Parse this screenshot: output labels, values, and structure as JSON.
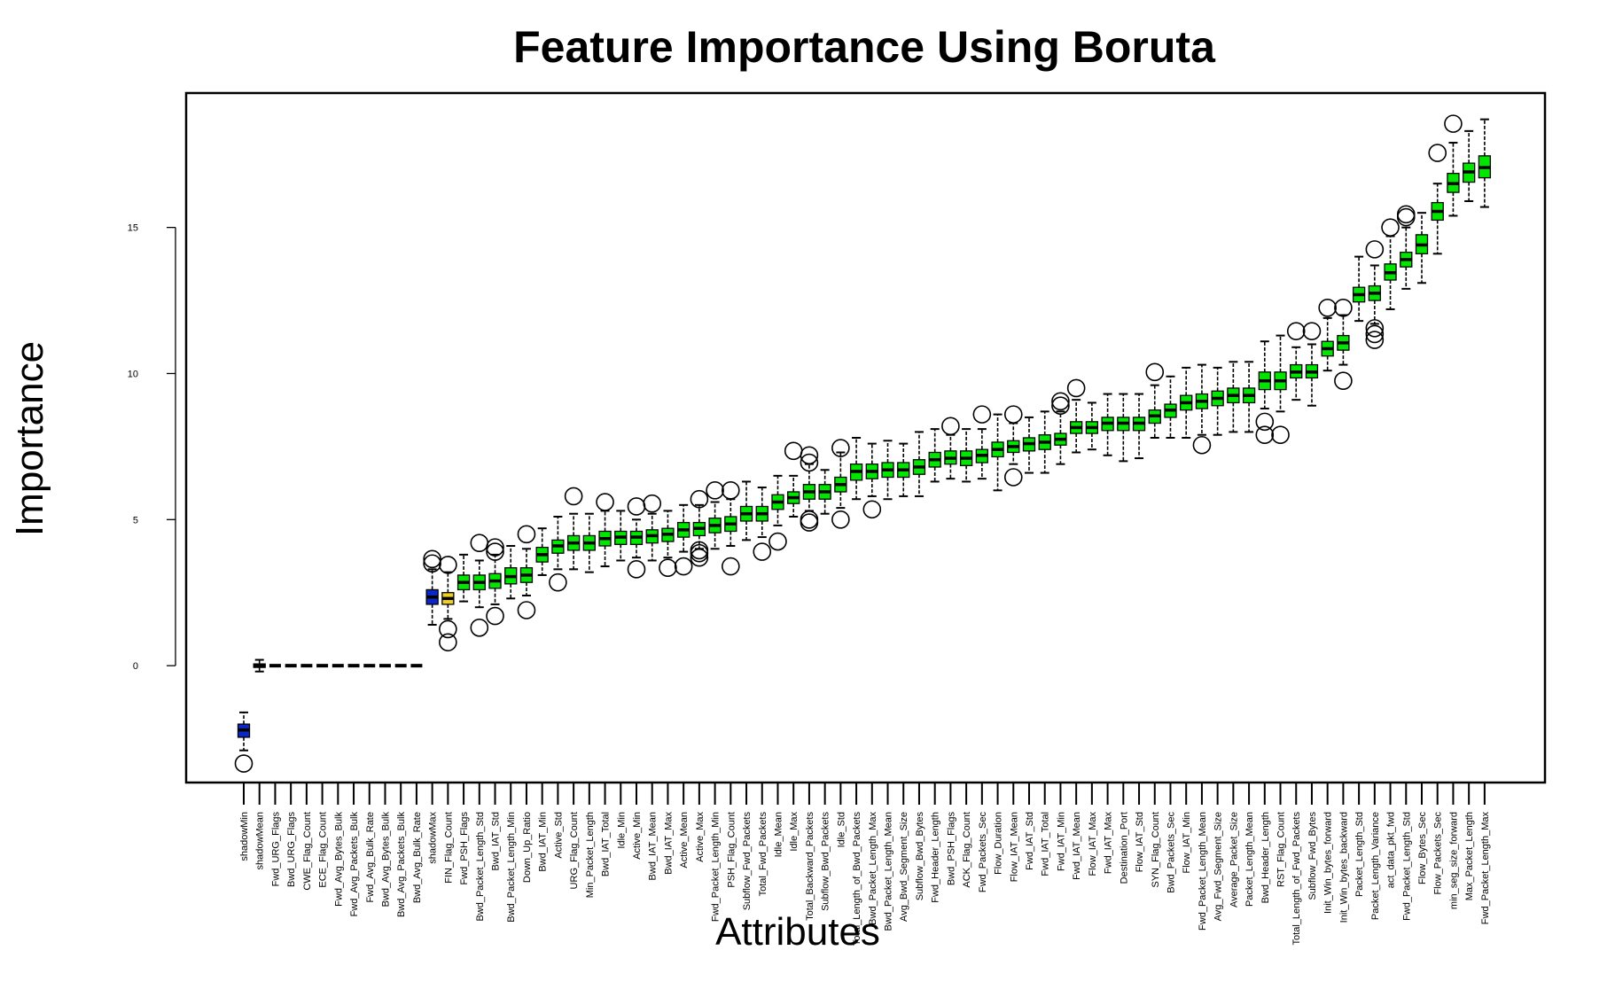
{
  "chart_data": {
    "type": "boxplot",
    "title": "Feature Importance Using Boruta",
    "xlabel": "Attributes",
    "ylabel": "Importance",
    "ylim": [
      -4.0,
      19.6
    ],
    "yticks": [
      0,
      5,
      10,
      15
    ],
    "ytick_labels": [
      "0",
      "5",
      "10",
      "15"
    ],
    "grid": false,
    "colors": {
      "shadow": "#0a28c8",
      "confirmed": "#00e600",
      "tentative": "#f0d020",
      "rejected": "#0a28c8",
      "outline": "#000000",
      "background": "#ffffff"
    },
    "attributes": [
      {
        "name": "shadowMin",
        "status": "shadow",
        "stats": [
          -2.9,
          -2.45,
          -2.2,
          -2.0,
          -1.6
        ],
        "outliers": [
          -3.35
        ]
      },
      {
        "name": "shadowMean",
        "status": "shadow",
        "stats": [
          -0.2,
          -0.06,
          0.0,
          0.06,
          0.2
        ],
        "outliers": []
      },
      {
        "name": "Fwd_URG_Flags",
        "status": "rejected",
        "stats": [
          0,
          0,
          0,
          0,
          0
        ],
        "outliers": []
      },
      {
        "name": "Bwd_URG_Flags",
        "status": "rejected",
        "stats": [
          0,
          0,
          0,
          0,
          0
        ],
        "outliers": []
      },
      {
        "name": "CWE_Flag_Count",
        "status": "rejected",
        "stats": [
          0,
          0,
          0,
          0,
          0
        ],
        "outliers": []
      },
      {
        "name": "ECE_Flag_Count",
        "status": "rejected",
        "stats": [
          0,
          0,
          0,
          0,
          0
        ],
        "outliers": []
      },
      {
        "name": "Fwd_Avg_Bytes_Bulk",
        "status": "rejected",
        "stats": [
          0,
          0,
          0,
          0,
          0
        ],
        "outliers": []
      },
      {
        "name": "Fwd_Avg_Packets_Bulk",
        "status": "rejected",
        "stats": [
          0,
          0,
          0,
          0,
          0
        ],
        "outliers": []
      },
      {
        "name": "Fwd_Avg_Bulk_Rate",
        "status": "rejected",
        "stats": [
          0,
          0,
          0,
          0,
          0
        ],
        "outliers": []
      },
      {
        "name": "Bwd_Avg_Bytes_Bulk",
        "status": "rejected",
        "stats": [
          0,
          0,
          0,
          0,
          0
        ],
        "outliers": []
      },
      {
        "name": "Bwd_Avg_Packets_Bulk",
        "status": "rejected",
        "stats": [
          0,
          0,
          0,
          0,
          0
        ],
        "outliers": []
      },
      {
        "name": "Bwd_Avg_Bulk_Rate",
        "status": "rejected",
        "stats": [
          0,
          0,
          0,
          0,
          0
        ],
        "outliers": []
      },
      {
        "name": "shadowMax",
        "status": "shadow",
        "stats": [
          1.4,
          2.1,
          2.35,
          2.6,
          3.3
        ],
        "outliers": [
          3.5,
          3.65
        ]
      },
      {
        "name": "FIN_Flag_Count",
        "status": "tentative",
        "stats": [
          1.6,
          2.1,
          2.3,
          2.5,
          3.2
        ],
        "outliers": [
          0.8,
          1.25,
          3.45
        ]
      },
      {
        "name": "Fwd_PSH_Flags",
        "status": "confirmed",
        "stats": [
          2.2,
          2.6,
          2.85,
          3.1,
          3.8
        ],
        "outliers": []
      },
      {
        "name": "Bwd_Packet_Length_Std",
        "status": "confirmed",
        "stats": [
          2.0,
          2.6,
          2.85,
          3.1,
          3.6
        ],
        "outliers": [
          1.3,
          4.2
        ]
      },
      {
        "name": "Bwd_IAT_Std",
        "status": "confirmed",
        "stats": [
          2.1,
          2.65,
          2.9,
          3.15,
          3.8
        ],
        "outliers": [
          1.7,
          4.05,
          3.9
        ]
      },
      {
        "name": "Bwd_Packet_Length_Min",
        "status": "confirmed",
        "stats": [
          2.3,
          2.8,
          3.05,
          3.35,
          4.1
        ],
        "outliers": []
      },
      {
        "name": "Down_Up_Ratio",
        "status": "confirmed",
        "stats": [
          2.4,
          2.85,
          3.1,
          3.35,
          4.0
        ],
        "outliers": [
          1.9,
          4.5
        ]
      },
      {
        "name": "Bwd_IAT_Min",
        "status": "confirmed",
        "stats": [
          3.1,
          3.55,
          3.8,
          4.05,
          4.7
        ],
        "outliers": []
      },
      {
        "name": "Active_Std",
        "status": "confirmed",
        "stats": [
          3.3,
          3.85,
          4.1,
          4.3,
          5.1
        ],
        "outliers": [
          2.85
        ]
      },
      {
        "name": "URG_Flag_Count",
        "status": "confirmed",
        "stats": [
          3.3,
          3.95,
          4.2,
          4.45,
          5.2
        ],
        "outliers": [
          5.8
        ]
      },
      {
        "name": "Min_Packet_Length",
        "status": "confirmed",
        "stats": [
          3.2,
          3.95,
          4.2,
          4.45,
          5.2
        ],
        "outliers": []
      },
      {
        "name": "Bwd_IAT_Total",
        "status": "confirmed",
        "stats": [
          3.4,
          4.1,
          4.35,
          4.6,
          5.3
        ],
        "outliers": [
          5.6
        ]
      },
      {
        "name": "Idle_Min",
        "status": "confirmed",
        "stats": [
          3.6,
          4.15,
          4.4,
          4.6,
          5.3
        ],
        "outliers": []
      },
      {
        "name": "Active_Min",
        "status": "confirmed",
        "stats": [
          3.7,
          4.15,
          4.4,
          4.6,
          5.0
        ],
        "outliers": [
          3.3,
          5.45
        ]
      },
      {
        "name": "Bwd_IAT_Mean",
        "status": "confirmed",
        "stats": [
          3.6,
          4.2,
          4.45,
          4.65,
          5.2
        ],
        "outliers": [
          5.55
        ]
      },
      {
        "name": "Bwd_IAT_Max",
        "status": "confirmed",
        "stats": [
          3.7,
          4.25,
          4.5,
          4.7,
          5.3
        ],
        "outliers": [
          3.35
        ]
      },
      {
        "name": "Active_Mean",
        "status": "confirmed",
        "stats": [
          3.9,
          4.4,
          4.65,
          4.9,
          5.5
        ],
        "outliers": [
          3.4
        ]
      },
      {
        "name": "Active_Max",
        "status": "confirmed",
        "stats": [
          4.0,
          4.45,
          4.7,
          4.9,
          5.5
        ],
        "outliers": [
          3.7,
          3.85,
          3.95,
          5.7
        ]
      },
      {
        "name": "Fwd_Packet_Length_Min",
        "status": "confirmed",
        "stats": [
          4.0,
          4.55,
          4.8,
          5.05,
          5.6
        ],
        "outliers": [
          6.0
        ]
      },
      {
        "name": "PSH_Flag_Count",
        "status": "confirmed",
        "stats": [
          4.1,
          4.6,
          4.85,
          5.1,
          5.7
        ],
        "outliers": [
          3.4,
          6.0
        ]
      },
      {
        "name": "Subflow_Fwd_Packets",
        "status": "confirmed",
        "stats": [
          4.3,
          4.95,
          5.2,
          5.45,
          6.3
        ],
        "outliers": []
      },
      {
        "name": "Total_Fwd_Packets",
        "status": "confirmed",
        "stats": [
          4.4,
          4.95,
          5.2,
          5.45,
          6.1
        ],
        "outliers": [
          3.9
        ]
      },
      {
        "name": "Idle_Mean",
        "status": "confirmed",
        "stats": [
          4.8,
          5.35,
          5.6,
          5.85,
          6.5
        ],
        "outliers": [
          4.25
        ]
      },
      {
        "name": "Idle_Max",
        "status": "confirmed",
        "stats": [
          5.1,
          5.55,
          5.75,
          5.95,
          6.5
        ],
        "outliers": [
          7.35
        ]
      },
      {
        "name": "Total_Backward_Packets",
        "status": "confirmed",
        "stats": [
          5.3,
          5.7,
          5.95,
          6.2,
          6.9
        ],
        "outliers": [
          4.9,
          5.0,
          6.95,
          7.2
        ]
      },
      {
        "name": "Subflow_Bwd_Packets",
        "status": "confirmed",
        "stats": [
          5.2,
          5.7,
          5.95,
          6.2,
          6.7
        ],
        "outliers": []
      },
      {
        "name": "Idle_Std",
        "status": "confirmed",
        "stats": [
          5.4,
          5.95,
          6.2,
          6.45,
          7.3
        ],
        "outliers": [
          5.0,
          7.45
        ]
      },
      {
        "name": "Total_Length_of_Bwd_Packets",
        "status": "confirmed",
        "stats": [
          5.7,
          6.35,
          6.65,
          6.9,
          7.8
        ],
        "outliers": []
      },
      {
        "name": "Bwd_Packet_Length_Max",
        "status": "confirmed",
        "stats": [
          5.8,
          6.4,
          6.65,
          6.9,
          7.6
        ],
        "outliers": [
          5.35
        ]
      },
      {
        "name": "Bwd_Packet_Length_Mean",
        "status": "confirmed",
        "stats": [
          5.7,
          6.45,
          6.7,
          6.95,
          7.7
        ],
        "outliers": []
      },
      {
        "name": "Avg_Bwd_Segment_Size",
        "status": "confirmed",
        "stats": [
          5.8,
          6.45,
          6.7,
          6.95,
          7.6
        ],
        "outliers": []
      },
      {
        "name": "Subflow_Bwd_Bytes",
        "status": "confirmed",
        "stats": [
          5.8,
          6.55,
          6.8,
          7.05,
          8.0
        ],
        "outliers": []
      },
      {
        "name": "Fwd_Header_Length",
        "status": "confirmed",
        "stats": [
          6.3,
          6.8,
          7.05,
          7.3,
          8.1
        ],
        "outliers": []
      },
      {
        "name": "Bwd_PSH_Flags",
        "status": "confirmed",
        "stats": [
          6.4,
          6.9,
          7.1,
          7.35,
          7.9
        ],
        "outliers": [
          8.2
        ]
      },
      {
        "name": "ACK_Flag_Count",
        "status": "confirmed",
        "stats": [
          6.3,
          6.85,
          7.1,
          7.35,
          8.1
        ],
        "outliers": []
      },
      {
        "name": "Fwd_Packets_Sec",
        "status": "confirmed",
        "stats": [
          6.4,
          6.95,
          7.2,
          7.4,
          8.1
        ],
        "outliers": [
          8.6
        ]
      },
      {
        "name": "Flow_Duration",
        "status": "confirmed",
        "stats": [
          6.0,
          7.15,
          7.4,
          7.65,
          8.6
        ],
        "outliers": []
      },
      {
        "name": "Flow_IAT_Mean",
        "status": "confirmed",
        "stats": [
          6.9,
          7.3,
          7.5,
          7.7,
          8.3
        ],
        "outliers": [
          6.45,
          8.6
        ]
      },
      {
        "name": "Fwd_IAT_Std",
        "status": "confirmed",
        "stats": [
          6.6,
          7.35,
          7.6,
          7.8,
          8.5
        ],
        "outliers": []
      },
      {
        "name": "Fwd_IAT_Total",
        "status": "confirmed",
        "stats": [
          6.6,
          7.4,
          7.65,
          7.9,
          8.7
        ],
        "outliers": []
      },
      {
        "name": "Fwd_IAT_Min",
        "status": "confirmed",
        "stats": [
          6.9,
          7.55,
          7.75,
          7.95,
          8.7
        ],
        "outliers": [
          8.9,
          9.05
        ]
      },
      {
        "name": "Fwd_IAT_Mean",
        "status": "confirmed",
        "stats": [
          7.3,
          7.95,
          8.15,
          8.35,
          9.1
        ],
        "outliers": [
          9.5
        ]
      },
      {
        "name": "Flow_IAT_Max",
        "status": "confirmed",
        "stats": [
          7.4,
          7.95,
          8.15,
          8.35,
          9.0
        ],
        "outliers": []
      },
      {
        "name": "Fwd_IAT_Max",
        "status": "confirmed",
        "stats": [
          7.2,
          8.05,
          8.3,
          8.5,
          9.3
        ],
        "outliers": []
      },
      {
        "name": "Destination_Port",
        "status": "confirmed",
        "stats": [
          7.0,
          8.05,
          8.3,
          8.5,
          9.3
        ],
        "outliers": []
      },
      {
        "name": "Flow_IAT_Std",
        "status": "confirmed",
        "stats": [
          7.1,
          8.05,
          8.3,
          8.5,
          9.3
        ],
        "outliers": []
      },
      {
        "name": "SYN_Flag_Count",
        "status": "confirmed",
        "stats": [
          7.8,
          8.3,
          8.55,
          8.75,
          9.6
        ],
        "outliers": [
          10.05
        ]
      },
      {
        "name": "Bwd_Packets_Sec",
        "status": "confirmed",
        "stats": [
          7.8,
          8.5,
          8.75,
          8.95,
          9.9
        ],
        "outliers": []
      },
      {
        "name": "Flow_IAT_Min",
        "status": "confirmed",
        "stats": [
          7.8,
          8.75,
          9.0,
          9.25,
          10.2
        ],
        "outliers": []
      },
      {
        "name": "Fwd_Packet_Length_Mean",
        "status": "confirmed",
        "stats": [
          7.9,
          8.8,
          9.05,
          9.3,
          10.3
        ],
        "outliers": [
          7.55
        ]
      },
      {
        "name": "Avg_Fwd_Segment_Size",
        "status": "confirmed",
        "stats": [
          7.9,
          8.9,
          9.15,
          9.4,
          10.2
        ],
        "outliers": []
      },
      {
        "name": "Average_Packet_Size",
        "status": "confirmed",
        "stats": [
          8.0,
          9.0,
          9.25,
          9.5,
          10.4
        ],
        "outliers": []
      },
      {
        "name": "Packet_Length_Mean",
        "status": "confirmed",
        "stats": [
          8.0,
          9.0,
          9.25,
          9.5,
          10.4
        ],
        "outliers": []
      },
      {
        "name": "Bwd_Header_Length",
        "status": "confirmed",
        "stats": [
          8.8,
          9.45,
          9.75,
          10.05,
          11.1
        ],
        "outliers": [
          7.9,
          8.35
        ]
      },
      {
        "name": "RST_Flag_Count",
        "status": "confirmed",
        "stats": [
          8.7,
          9.45,
          9.75,
          10.05,
          11.3
        ],
        "outliers": [
          7.9
        ]
      },
      {
        "name": "Total_Length_of_Fwd_Packets",
        "status": "confirmed",
        "stats": [
          9.1,
          9.85,
          10.05,
          10.3,
          10.9
        ],
        "outliers": [
          11.45
        ]
      },
      {
        "name": "Subflow_Fwd_Bytes",
        "status": "confirmed",
        "stats": [
          8.9,
          9.85,
          10.05,
          10.3,
          11.0
        ],
        "outliers": [
          11.45
        ]
      },
      {
        "name": "Init_Win_bytes_forward",
        "status": "confirmed",
        "stats": [
          10.1,
          10.6,
          10.85,
          11.1,
          11.9
        ],
        "outliers": [
          12.25
        ]
      },
      {
        "name": "Init_Win_bytes_backward",
        "status": "confirmed",
        "stats": [
          10.3,
          10.8,
          11.05,
          11.3,
          12.0
        ],
        "outliers": [
          9.75,
          12.25
        ]
      },
      {
        "name": "Packet_Length_Std",
        "status": "confirmed",
        "stats": [
          11.8,
          12.45,
          12.7,
          12.95,
          14.0
        ],
        "outliers": []
      },
      {
        "name": "Packet_Length_Variance",
        "status": "confirmed",
        "stats": [
          11.7,
          12.5,
          12.75,
          13.0,
          13.7
        ],
        "outliers": [
          11.15,
          11.35,
          11.55,
          14.25
        ]
      },
      {
        "name": "act_data_pkt_fwd",
        "status": "confirmed",
        "stats": [
          12.2,
          13.2,
          13.45,
          13.75,
          14.7
        ],
        "outliers": [
          15.0
        ]
      },
      {
        "name": "Fwd_Packet_Length_Std",
        "status": "confirmed",
        "stats": [
          12.9,
          13.65,
          13.9,
          14.15,
          15.0
        ],
        "outliers": [
          15.35,
          15.45
        ]
      },
      {
        "name": "Flow_Bytes_Sec",
        "status": "confirmed",
        "stats": [
          13.1,
          14.1,
          14.4,
          14.75,
          15.5
        ],
        "outliers": []
      },
      {
        "name": "Flow_Packets_Sec",
        "status": "confirmed",
        "stats": [
          14.1,
          15.25,
          15.55,
          15.85,
          16.5
        ],
        "outliers": [
          17.55
        ]
      },
      {
        "name": "min_seg_size_forward",
        "status": "confirmed",
        "stats": [
          15.4,
          16.2,
          16.5,
          16.85,
          17.9
        ],
        "outliers": [
          18.55
        ]
      },
      {
        "name": "Max_Packet_Length",
        "status": "confirmed",
        "stats": [
          15.9,
          16.55,
          16.9,
          17.2,
          18.3
        ],
        "outliers": []
      },
      {
        "name": "Fwd_Packet_Length_Max",
        "status": "confirmed",
        "stats": [
          15.7,
          16.7,
          17.05,
          17.45,
          18.7
        ],
        "outliers": []
      }
    ]
  }
}
